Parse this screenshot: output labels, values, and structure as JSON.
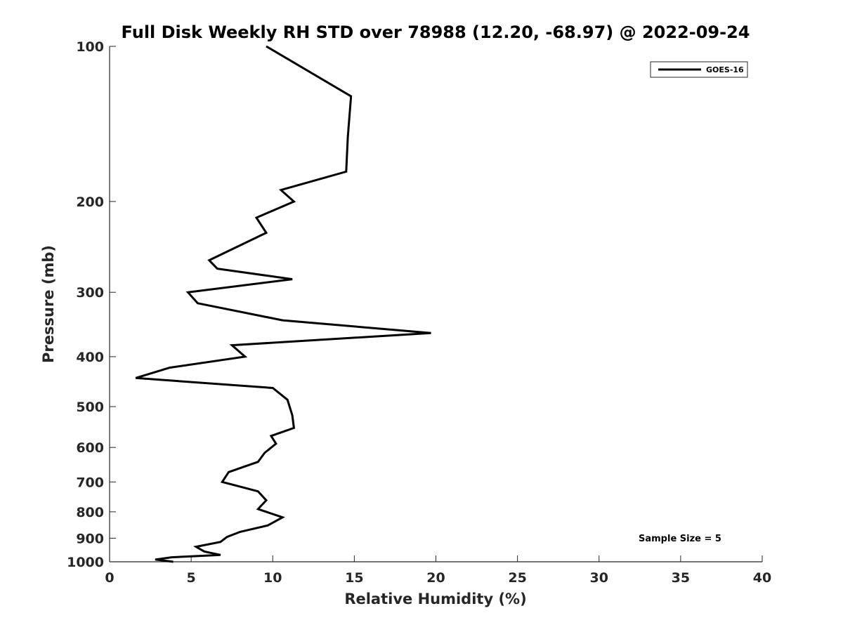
{
  "chart_data": {
    "type": "line",
    "title": "Full Disk Weekly RH STD over 78988 (12.20, -68.97) @ 2022-09-24",
    "xlabel": "Relative Humidity (%)",
    "ylabel": "Pressure (mb)",
    "xlim": [
      0,
      40
    ],
    "ylim": [
      100,
      1000
    ],
    "y_scale": "log",
    "y_reversed": true,
    "x_ticks": [
      "0",
      "5",
      "10",
      "15",
      "20",
      "25",
      "30",
      "35",
      "40"
    ],
    "y_ticks": [
      "100",
      "200",
      "300",
      "400",
      "500",
      "600",
      "700",
      "800",
      "900",
      "1000"
    ],
    "grid": false,
    "legend_position": "top-right",
    "series": [
      {
        "name": "GOES-16",
        "color": "#000000",
        "points": [
          [
            9.6,
            100
          ],
          [
            14.8,
            125
          ],
          [
            14.6,
            150
          ],
          [
            14.5,
            175
          ],
          [
            10.5,
            190
          ],
          [
            11.3,
            200
          ],
          [
            9.0,
            215
          ],
          [
            9.6,
            230
          ],
          [
            7.8,
            245
          ],
          [
            6.1,
            260
          ],
          [
            6.6,
            270
          ],
          [
            11.2,
            283
          ],
          [
            4.8,
            300
          ],
          [
            5.4,
            315
          ],
          [
            10.6,
            340
          ],
          [
            19.7,
            360
          ],
          [
            7.5,
            380
          ],
          [
            8.3,
            400
          ],
          [
            3.7,
            420
          ],
          [
            1.6,
            440
          ],
          [
            10.0,
            460
          ],
          [
            10.9,
            485
          ],
          [
            11.2,
            520
          ],
          [
            11.3,
            550
          ],
          [
            9.9,
            570
          ],
          [
            10.2,
            590
          ],
          [
            9.5,
            615
          ],
          [
            9.1,
            640
          ],
          [
            7.3,
            670
          ],
          [
            6.9,
            700
          ],
          [
            9.1,
            730
          ],
          [
            9.6,
            760
          ],
          [
            9.1,
            790
          ],
          [
            10.6,
            820
          ],
          [
            9.7,
            850
          ],
          [
            8.0,
            875
          ],
          [
            7.2,
            895
          ],
          [
            6.8,
            915
          ],
          [
            5.3,
            935
          ],
          [
            5.8,
            955
          ],
          [
            6.8,
            970
          ],
          [
            3.8,
            980
          ],
          [
            2.8,
            990
          ],
          [
            3.9,
            1000
          ]
        ]
      }
    ],
    "annotation": "Sample Size = 5"
  }
}
